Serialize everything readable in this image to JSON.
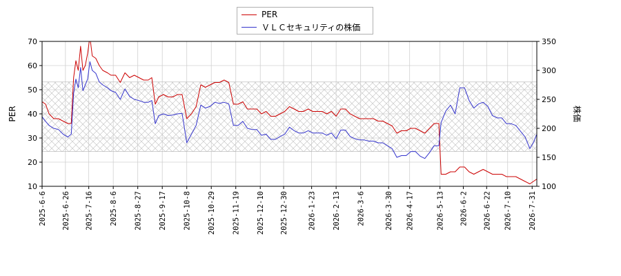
{
  "chart_data": {
    "type": "line",
    "x_start": "2025-06-06",
    "x_end": "2026-08-04",
    "x_ticks": [
      "2025-6-6",
      "2025-6-26",
      "2025-7-16",
      "2025-8-6",
      "2025-8-27",
      "2025-9-17",
      "2025-10-8",
      "2025-10-29",
      "2025-11-19",
      "2025-12-10",
      "2025-12-30",
      "2026-1-23",
      "2026-2-13",
      "2026-3-6",
      "2026-3-30",
      "2026-4-17",
      "2026-5-13",
      "2026-6-2",
      "2026-6-22",
      "2026-7-10",
      "2026-7-31"
    ],
    "y_left": {
      "label": "PER",
      "range": [
        10,
        70
      ],
      "ticks": [
        10,
        20,
        30,
        40,
        50,
        60,
        70
      ]
    },
    "y_right": {
      "label": "株価",
      "range": [
        100,
        350
      ],
      "ticks": [
        100,
        150,
        200,
        250,
        300,
        350
      ]
    },
    "hatched_band": {
      "axis": "right",
      "from": 160,
      "to": 280
    },
    "grid": true,
    "legend_position": "top-center",
    "series": [
      {
        "name": "PER",
        "axis": "left",
        "color": "#cc0000",
        "points": [
          [
            "2025-06-06",
            45
          ],
          [
            "2025-06-09",
            44
          ],
          [
            "2025-06-12",
            40
          ],
          [
            "2025-06-16",
            38
          ],
          [
            "2025-06-20",
            38
          ],
          [
            "2025-06-24",
            37
          ],
          [
            "2025-06-28",
            36
          ],
          [
            "2025-07-01",
            36
          ],
          [
            "2025-07-03",
            55
          ],
          [
            "2025-07-05",
            62
          ],
          [
            "2025-07-07",
            58
          ],
          [
            "2025-07-09",
            68
          ],
          [
            "2025-07-11",
            58
          ],
          [
            "2025-07-13",
            60
          ],
          [
            "2025-07-15",
            65
          ],
          [
            "2025-07-17",
            72
          ],
          [
            "2025-07-19",
            64
          ],
          [
            "2025-07-22",
            63
          ],
          [
            "2025-07-25",
            60
          ],
          [
            "2025-07-28",
            58
          ],
          [
            "2025-08-01",
            57
          ],
          [
            "2025-08-04",
            56
          ],
          [
            "2025-08-08",
            56
          ],
          [
            "2025-08-12",
            53
          ],
          [
            "2025-08-16",
            57
          ],
          [
            "2025-08-20",
            55
          ],
          [
            "2025-08-24",
            56
          ],
          [
            "2025-08-28",
            55
          ],
          [
            "2025-09-01",
            54
          ],
          [
            "2025-09-05",
            54
          ],
          [
            "2025-09-08",
            55
          ],
          [
            "2025-09-11",
            44
          ],
          [
            "2025-09-14",
            47
          ],
          [
            "2025-09-18",
            48
          ],
          [
            "2025-09-22",
            47
          ],
          [
            "2025-09-26",
            47
          ],
          [
            "2025-09-30",
            48
          ],
          [
            "2025-10-04",
            48
          ],
          [
            "2025-10-08",
            38
          ],
          [
            "2025-10-12",
            40
          ],
          [
            "2025-10-16",
            43
          ],
          [
            "2025-10-20",
            52
          ],
          [
            "2025-10-24",
            51
          ],
          [
            "2025-10-28",
            52
          ],
          [
            "2025-11-01",
            53
          ],
          [
            "2025-11-05",
            53
          ],
          [
            "2025-11-09",
            54
          ],
          [
            "2025-11-13",
            53
          ],
          [
            "2025-11-17",
            44
          ],
          [
            "2025-11-21",
            44
          ],
          [
            "2025-11-25",
            45
          ],
          [
            "2025-11-29",
            42
          ],
          [
            "2025-12-03",
            42
          ],
          [
            "2025-12-07",
            42
          ],
          [
            "2025-12-11",
            40
          ],
          [
            "2025-12-15",
            41
          ],
          [
            "2025-12-19",
            39
          ],
          [
            "2025-12-23",
            39
          ],
          [
            "2025-12-27",
            40
          ],
          [
            "2025-12-31",
            41
          ],
          [
            "2026-01-04",
            43
          ],
          [
            "2026-01-08",
            42
          ],
          [
            "2026-01-12",
            41
          ],
          [
            "2026-01-16",
            41
          ],
          [
            "2026-01-20",
            42
          ],
          [
            "2026-01-24",
            41
          ],
          [
            "2026-01-28",
            41
          ],
          [
            "2026-02-01",
            41
          ],
          [
            "2026-02-05",
            40
          ],
          [
            "2026-02-09",
            41
          ],
          [
            "2026-02-13",
            39
          ],
          [
            "2026-02-17",
            42
          ],
          [
            "2026-02-21",
            42
          ],
          [
            "2026-02-25",
            40
          ],
          [
            "2026-03-01",
            39
          ],
          [
            "2026-03-05",
            38
          ],
          [
            "2026-03-09",
            38
          ],
          [
            "2026-03-13",
            38
          ],
          [
            "2026-03-17",
            38
          ],
          [
            "2026-03-21",
            37
          ],
          [
            "2026-03-25",
            37
          ],
          [
            "2026-03-29",
            36
          ],
          [
            "2026-04-02",
            35
          ],
          [
            "2026-04-06",
            32
          ],
          [
            "2026-04-10",
            33
          ],
          [
            "2026-04-14",
            33
          ],
          [
            "2026-04-18",
            34
          ],
          [
            "2026-04-22",
            34
          ],
          [
            "2026-04-26",
            33
          ],
          [
            "2026-04-30",
            32
          ],
          [
            "2026-05-04",
            34
          ],
          [
            "2026-05-08",
            36
          ],
          [
            "2026-05-12",
            36
          ],
          [
            "2026-05-14",
            15
          ],
          [
            "2026-05-18",
            15
          ],
          [
            "2026-05-22",
            16
          ],
          [
            "2026-05-26",
            16
          ],
          [
            "2026-05-30",
            18
          ],
          [
            "2026-06-03",
            18
          ],
          [
            "2026-06-07",
            16
          ],
          [
            "2026-06-11",
            15
          ],
          [
            "2026-06-15",
            16
          ],
          [
            "2026-06-19",
            17
          ],
          [
            "2026-06-23",
            16
          ],
          [
            "2026-06-27",
            15
          ],
          [
            "2026-07-01",
            15
          ],
          [
            "2026-07-05",
            15
          ],
          [
            "2026-07-09",
            14
          ],
          [
            "2026-07-13",
            14
          ],
          [
            "2026-07-17",
            14
          ],
          [
            "2026-07-21",
            13
          ],
          [
            "2026-07-25",
            12
          ],
          [
            "2026-07-29",
            11
          ],
          [
            "2026-08-01",
            12
          ],
          [
            "2026-08-04",
            13
          ]
        ]
      },
      {
        "name": "ＶＬＣセキュリティの株価",
        "axis": "right",
        "color": "#3333cc",
        "points": [
          [
            "2025-06-06",
            220
          ],
          [
            "2025-06-09",
            212
          ],
          [
            "2025-06-12",
            205
          ],
          [
            "2025-06-16",
            200
          ],
          [
            "2025-06-20",
            198
          ],
          [
            "2025-06-24",
            190
          ],
          [
            "2025-06-28",
            185
          ],
          [
            "2025-07-01",
            190
          ],
          [
            "2025-07-03",
            260
          ],
          [
            "2025-07-05",
            285
          ],
          [
            "2025-07-07",
            270
          ],
          [
            "2025-07-09",
            305
          ],
          [
            "2025-07-11",
            265
          ],
          [
            "2025-07-13",
            275
          ],
          [
            "2025-07-15",
            285
          ],
          [
            "2025-07-17",
            315
          ],
          [
            "2025-07-19",
            300
          ],
          [
            "2025-07-22",
            295
          ],
          [
            "2025-07-25",
            280
          ],
          [
            "2025-07-28",
            275
          ],
          [
            "2025-08-01",
            270
          ],
          [
            "2025-08-04",
            265
          ],
          [
            "2025-08-08",
            262
          ],
          [
            "2025-08-12",
            250
          ],
          [
            "2025-08-16",
            268
          ],
          [
            "2025-08-20",
            255
          ],
          [
            "2025-08-24",
            250
          ],
          [
            "2025-08-28",
            248
          ],
          [
            "2025-09-01",
            245
          ],
          [
            "2025-09-05",
            245
          ],
          [
            "2025-09-08",
            248
          ],
          [
            "2025-09-11",
            208
          ],
          [
            "2025-09-14",
            222
          ],
          [
            "2025-09-18",
            225
          ],
          [
            "2025-09-22",
            222
          ],
          [
            "2025-09-26",
            223
          ],
          [
            "2025-09-30",
            225
          ],
          [
            "2025-10-04",
            226
          ],
          [
            "2025-10-08",
            175
          ],
          [
            "2025-10-12",
            190
          ],
          [
            "2025-10-16",
            205
          ],
          [
            "2025-10-20",
            240
          ],
          [
            "2025-10-24",
            235
          ],
          [
            "2025-10-28",
            238
          ],
          [
            "2025-11-01",
            245
          ],
          [
            "2025-11-05",
            243
          ],
          [
            "2025-11-09",
            245
          ],
          [
            "2025-11-13",
            242
          ],
          [
            "2025-11-17",
            205
          ],
          [
            "2025-11-21",
            205
          ],
          [
            "2025-11-25",
            212
          ],
          [
            "2025-11-29",
            200
          ],
          [
            "2025-12-03",
            198
          ],
          [
            "2025-12-07",
            198
          ],
          [
            "2025-12-11",
            188
          ],
          [
            "2025-12-15",
            190
          ],
          [
            "2025-12-19",
            181
          ],
          [
            "2025-12-23",
            181
          ],
          [
            "2025-12-27",
            186
          ],
          [
            "2025-12-31",
            190
          ],
          [
            "2026-01-04",
            202
          ],
          [
            "2026-01-08",
            196
          ],
          [
            "2026-01-12",
            192
          ],
          [
            "2026-01-16",
            192
          ],
          [
            "2026-01-20",
            196
          ],
          [
            "2026-01-24",
            192
          ],
          [
            "2026-01-28",
            192
          ],
          [
            "2026-02-01",
            192
          ],
          [
            "2026-02-05",
            188
          ],
          [
            "2026-02-09",
            192
          ],
          [
            "2026-02-13",
            182
          ],
          [
            "2026-02-17",
            197
          ],
          [
            "2026-02-21",
            197
          ],
          [
            "2026-02-25",
            186
          ],
          [
            "2026-03-01",
            182
          ],
          [
            "2026-03-05",
            180
          ],
          [
            "2026-03-09",
            180
          ],
          [
            "2026-03-13",
            178
          ],
          [
            "2026-03-17",
            178
          ],
          [
            "2026-03-21",
            175
          ],
          [
            "2026-03-25",
            175
          ],
          [
            "2026-03-29",
            170
          ],
          [
            "2026-04-02",
            165
          ],
          [
            "2026-04-06",
            150
          ],
          [
            "2026-04-10",
            153
          ],
          [
            "2026-04-14",
            153
          ],
          [
            "2026-04-18",
            160
          ],
          [
            "2026-04-22",
            160
          ],
          [
            "2026-04-26",
            152
          ],
          [
            "2026-04-30",
            148
          ],
          [
            "2026-05-04",
            158
          ],
          [
            "2026-05-08",
            170
          ],
          [
            "2026-05-12",
            170
          ],
          [
            "2026-05-14",
            210
          ],
          [
            "2026-05-18",
            230
          ],
          [
            "2026-05-22",
            240
          ],
          [
            "2026-05-26",
            225
          ],
          [
            "2026-05-30",
            270
          ],
          [
            "2026-06-03",
            270
          ],
          [
            "2026-06-07",
            248
          ],
          [
            "2026-06-11",
            235
          ],
          [
            "2026-06-15",
            242
          ],
          [
            "2026-06-19",
            245
          ],
          [
            "2026-06-23",
            238
          ],
          [
            "2026-06-27",
            222
          ],
          [
            "2026-07-01",
            218
          ],
          [
            "2026-07-05",
            218
          ],
          [
            "2026-07-09",
            208
          ],
          [
            "2026-07-13",
            208
          ],
          [
            "2026-07-17",
            205
          ],
          [
            "2026-07-21",
            195
          ],
          [
            "2026-07-25",
            185
          ],
          [
            "2026-07-29",
            165
          ],
          [
            "2026-08-01",
            175
          ],
          [
            "2026-08-04",
            190
          ]
        ]
      }
    ]
  }
}
